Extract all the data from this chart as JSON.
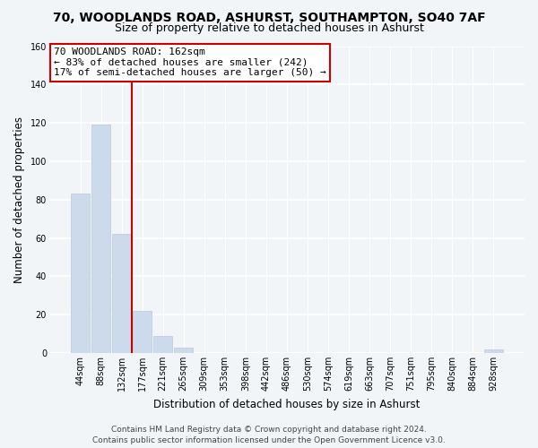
{
  "title": "70, WOODLANDS ROAD, ASHURST, SOUTHAMPTON, SO40 7AF",
  "subtitle": "Size of property relative to detached houses in Ashurst",
  "xlabel": "Distribution of detached houses by size in Ashurst",
  "ylabel": "Number of detached properties",
  "bar_labels": [
    "44sqm",
    "88sqm",
    "132sqm",
    "177sqm",
    "221sqm",
    "265sqm",
    "309sqm",
    "353sqm",
    "398sqm",
    "442sqm",
    "486sqm",
    "530sqm",
    "574sqm",
    "619sqm",
    "663sqm",
    "707sqm",
    "751sqm",
    "795sqm",
    "840sqm",
    "884sqm",
    "928sqm"
  ],
  "bar_values": [
    83,
    119,
    62,
    22,
    9,
    3,
    0,
    0,
    0,
    0,
    0,
    0,
    0,
    0,
    0,
    0,
    0,
    0,
    0,
    0,
    2
  ],
  "bar_color": "#ccdaeb",
  "bar_edge_color": "#b8c8de",
  "vline_color": "#cc0000",
  "annotation_line1": "70 WOODLANDS ROAD: 162sqm",
  "annotation_line2": "← 83% of detached houses are smaller (242)",
  "annotation_line3": "17% of semi-detached houses are larger (50) →",
  "annotation_box_facecolor": "#ffffff",
  "annotation_box_edgecolor": "#cc0000",
  "ylim": [
    0,
    160
  ],
  "yticks": [
    0,
    20,
    40,
    60,
    80,
    100,
    120,
    140,
    160
  ],
  "footer_line1": "Contains HM Land Registry data © Crown copyright and database right 2024.",
  "footer_line2": "Contains public sector information licensed under the Open Government Licence v3.0.",
  "bg_color": "#f2f5f8",
  "plot_bg_color": "#f2f5f8",
  "grid_color": "#ffffff",
  "title_fontsize": 10,
  "subtitle_fontsize": 9,
  "axis_label_fontsize": 8.5,
  "tick_fontsize": 7,
  "annotation_fontsize": 8,
  "footer_fontsize": 6.5
}
